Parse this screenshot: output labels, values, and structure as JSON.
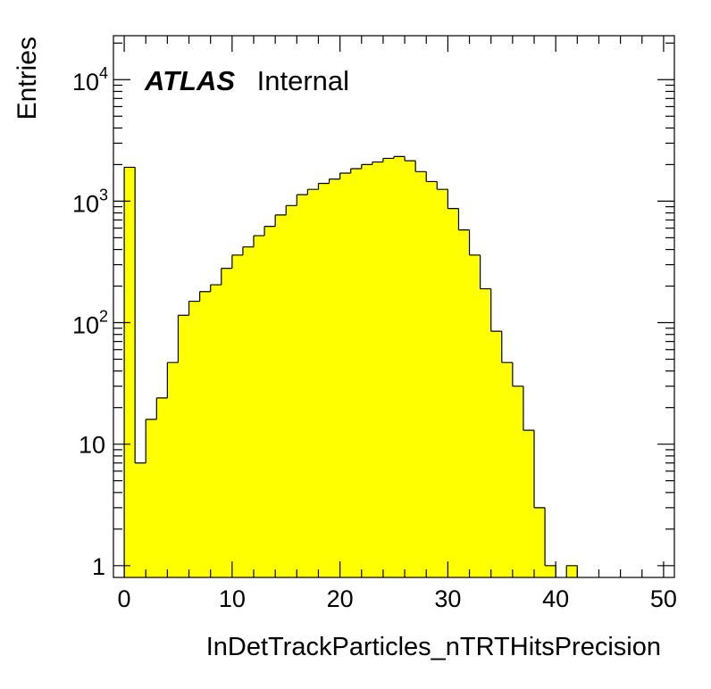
{
  "chart_data": {
    "type": "bar",
    "histogram": true,
    "title": "",
    "xlabel": "InDetTrackParticles_nTRTHitsPrecision",
    "ylabel": "Entries",
    "xlim": [
      -1,
      51
    ],
    "ylim": [
      0.8,
      23000
    ],
    "log_y": true,
    "grid": false,
    "fill_color": "#ffff00",
    "line_color": "#000000",
    "annotation": {
      "bold": "ATLAS",
      "text": "Internal"
    },
    "x_ticks": [
      {
        "value": 0,
        "label": "0"
      },
      {
        "value": 10,
        "label": "10"
      },
      {
        "value": 20,
        "label": "20"
      },
      {
        "value": 30,
        "label": "30"
      },
      {
        "value": 40,
        "label": "40"
      },
      {
        "value": 50,
        "label": "50"
      }
    ],
    "y_ticks": [
      {
        "value": 1,
        "base": "1",
        "exp": ""
      },
      {
        "value": 10,
        "base": "10",
        "exp": ""
      },
      {
        "value": 100,
        "base": "10",
        "exp": "2"
      },
      {
        "value": 1000,
        "base": "10",
        "exp": "3"
      },
      {
        "value": 10000,
        "base": "10",
        "exp": "4"
      }
    ],
    "bin_width": 1,
    "bin_edges_start": 0,
    "values": [
      1900,
      7,
      16,
      24,
      47,
      115,
      150,
      180,
      205,
      280,
      360,
      420,
      520,
      620,
      770,
      920,
      1130,
      1250,
      1400,
      1520,
      1700,
      1850,
      2000,
      2100,
      2250,
      2330,
      2150,
      1750,
      1450,
      1250,
      870,
      580,
      360,
      190,
      85,
      47,
      30,
      13,
      3,
      1,
      0,
      1,
      0,
      0,
      0,
      0,
      0,
      0,
      0,
      0
    ]
  }
}
